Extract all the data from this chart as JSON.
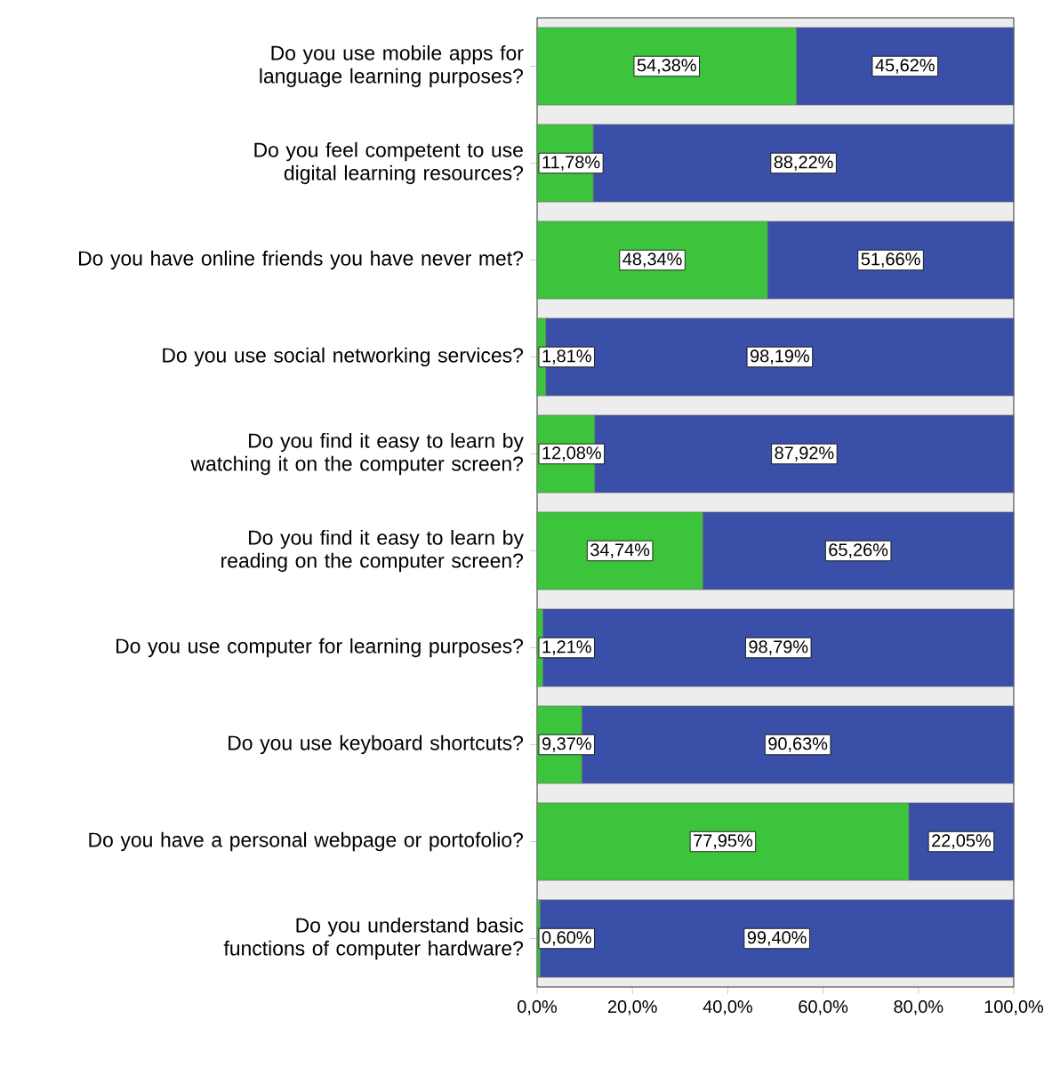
{
  "chart_data": {
    "type": "bar",
    "orientation": "horizontal",
    "stacked": true,
    "categories": [
      "Do you use mobile apps for language learning purposes?",
      "Do you feel competent to use digital learning resources?",
      "Do you have online friends you have never met?",
      "Do you use social networking services?",
      "Do you find it easy to learn by watching it on the computer screen?",
      "Do you find it easy to learn by reading on the computer screen?",
      "Do you use computer for learning purposes?",
      "Do you use keyboard shortcuts?",
      "Do you have a personal webpage or portofolio?",
      "Do you understand basic functions of computer hardware?"
    ],
    "series": [
      {
        "color": "#3cc43c",
        "values": [
          54.38,
          11.78,
          48.34,
          1.81,
          12.08,
          34.74,
          1.21,
          9.37,
          77.95,
          0.6
        ],
        "value_labels": [
          "54,38%",
          "11,78%",
          "48,34%",
          "1,81%",
          "12,08%",
          "34,74%",
          "1,21%",
          "9,37%",
          "77,95%",
          "0,60%"
        ]
      },
      {
        "color": "#3a4fa8",
        "values": [
          45.62,
          88.22,
          51.66,
          98.19,
          87.92,
          65.26,
          98.79,
          90.63,
          22.05,
          99.4
        ],
        "value_labels": [
          "45,62%",
          "88,22%",
          "51,66%",
          "98,19%",
          "87,92%",
          "65,26%",
          "98,79%",
          "90,63%",
          "22,05%",
          "99,40%"
        ]
      }
    ],
    "xlim": [
      0,
      100
    ],
    "xticks": [
      {
        "value": 0,
        "label": "0,0%"
      },
      {
        "value": 20,
        "label": "20,0%"
      },
      {
        "value": 40,
        "label": "40,0%"
      },
      {
        "value": 60,
        "label": "60,0%"
      },
      {
        "value": 80,
        "label": "80,0%"
      },
      {
        "value": 100,
        "label": "100,0%"
      }
    ]
  }
}
